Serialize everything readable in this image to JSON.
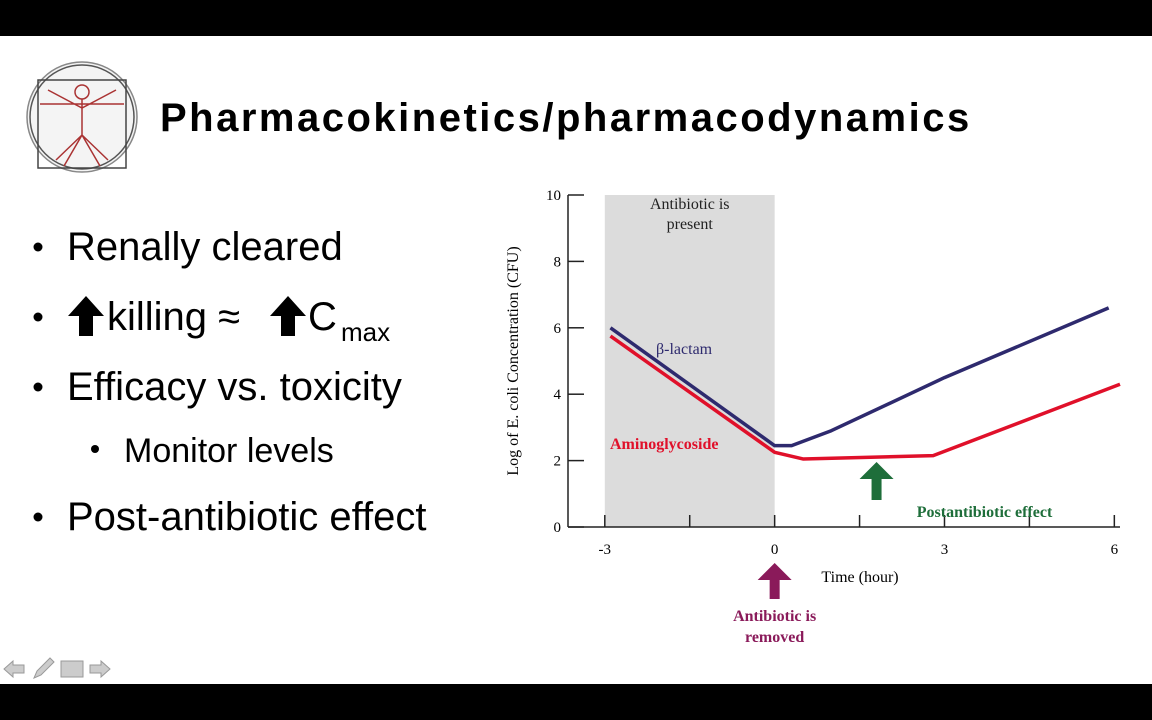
{
  "slide": {
    "title": "Pharmacokinetics/pharmacodynamics",
    "bullets": [
      {
        "text": "Renally cleared"
      },
      {
        "parts": [
          "killing ≈",
          "C",
          "max"
        ]
      },
      {
        "text": "Efficacy vs. toxicity"
      },
      {
        "text": "Monitor levels",
        "level": 2
      },
      {
        "text": "Post-antibiotic effect"
      }
    ]
  },
  "chart_data": {
    "type": "line",
    "xlabel": "Time (hour)",
    "ylabel": "Log of E. coli Concentration (CFU)",
    "xlim": [
      -3.65,
      6.1
    ],
    "xticks": [
      -3,
      0,
      3,
      6
    ],
    "xminor_ticks": [
      -1.5,
      1.5,
      4.5
    ],
    "ylim": [
      0,
      10
    ],
    "yticks": [
      0,
      2,
      4,
      6,
      8,
      10
    ],
    "shaded_range": [
      -3,
      0
    ],
    "shaded_color": "#dcdcdc",
    "shaded_label": [
      "Antibiotic is",
      "present"
    ],
    "series": [
      {
        "name": "β-lactam",
        "color": "#2e2a6e",
        "x": [
          -2.9,
          0,
          0.3,
          1,
          3,
          5.9
        ],
        "values": [
          6.0,
          2.45,
          2.45,
          2.9,
          4.5,
          6.6
        ]
      },
      {
        "name": "Aminoglycoside",
        "color": "#e0102a",
        "x": [
          -2.9,
          0,
          0.5,
          2.8,
          6.1
        ],
        "values": [
          5.75,
          2.25,
          2.05,
          2.15,
          4.3
        ]
      }
    ],
    "annotations": [
      {
        "lines": [
          "Postantibiotic effect"
        ],
        "x": 1.8,
        "color": "#1e6e3a"
      },
      {
        "lines": [
          "Antibiotic is",
          "removed"
        ],
        "x": 0,
        "color": "#8a1a5a"
      }
    ]
  }
}
